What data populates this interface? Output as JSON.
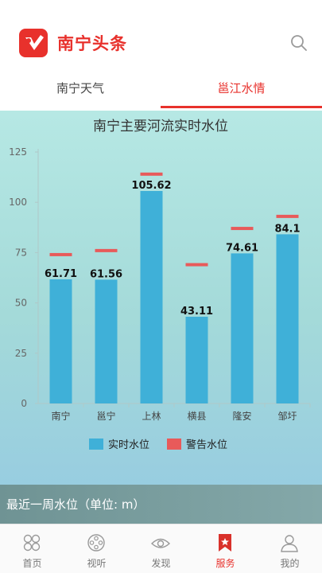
{
  "header": {
    "app_title": "南宁头条"
  },
  "tabs": [
    {
      "label": "南宁天气",
      "active": false
    },
    {
      "label": "邕江水情",
      "active": true
    }
  ],
  "chart_data": {
    "type": "bar",
    "title": "南宁主要河流实时水位",
    "categories": [
      "南宁",
      "邕宁",
      "上林",
      "横县",
      "隆安",
      "邹圩"
    ],
    "series": [
      {
        "name": "实时水位",
        "type": "bar",
        "color": "#3fb0d8",
        "values": [
          61.71,
          61.56,
          105.62,
          43.11,
          74.61,
          84.1
        ]
      },
      {
        "name": "警告水位",
        "type": "marker",
        "color": "#e85a5a",
        "values": [
          74,
          76,
          114,
          69,
          87,
          93
        ]
      }
    ],
    "value_labels": [
      "61.71",
      "61.56",
      "105.62",
      "43.11",
      "74.61",
      "84.1"
    ],
    "ylim": [
      0,
      125
    ],
    "yticks": [
      "0",
      "25",
      "50",
      "75",
      "100",
      "125"
    ],
    "grid": false,
    "legend_placement": "bottom"
  },
  "week_section": {
    "label": "最近一周水位（单位: m）"
  },
  "bottom_nav": [
    {
      "label": "首页",
      "icon": "home-grid-icon",
      "active": false
    },
    {
      "label": "视听",
      "icon": "film-reel-icon",
      "active": false
    },
    {
      "label": "发现",
      "icon": "eye-icon",
      "active": false
    },
    {
      "label": "服务",
      "icon": "bookmark-star-icon",
      "active": true
    },
    {
      "label": "我的",
      "icon": "user-icon",
      "active": false
    }
  ],
  "colors": {
    "brand": "#e8312c",
    "bar": "#3fb0d8",
    "warning": "#e85a5a"
  }
}
